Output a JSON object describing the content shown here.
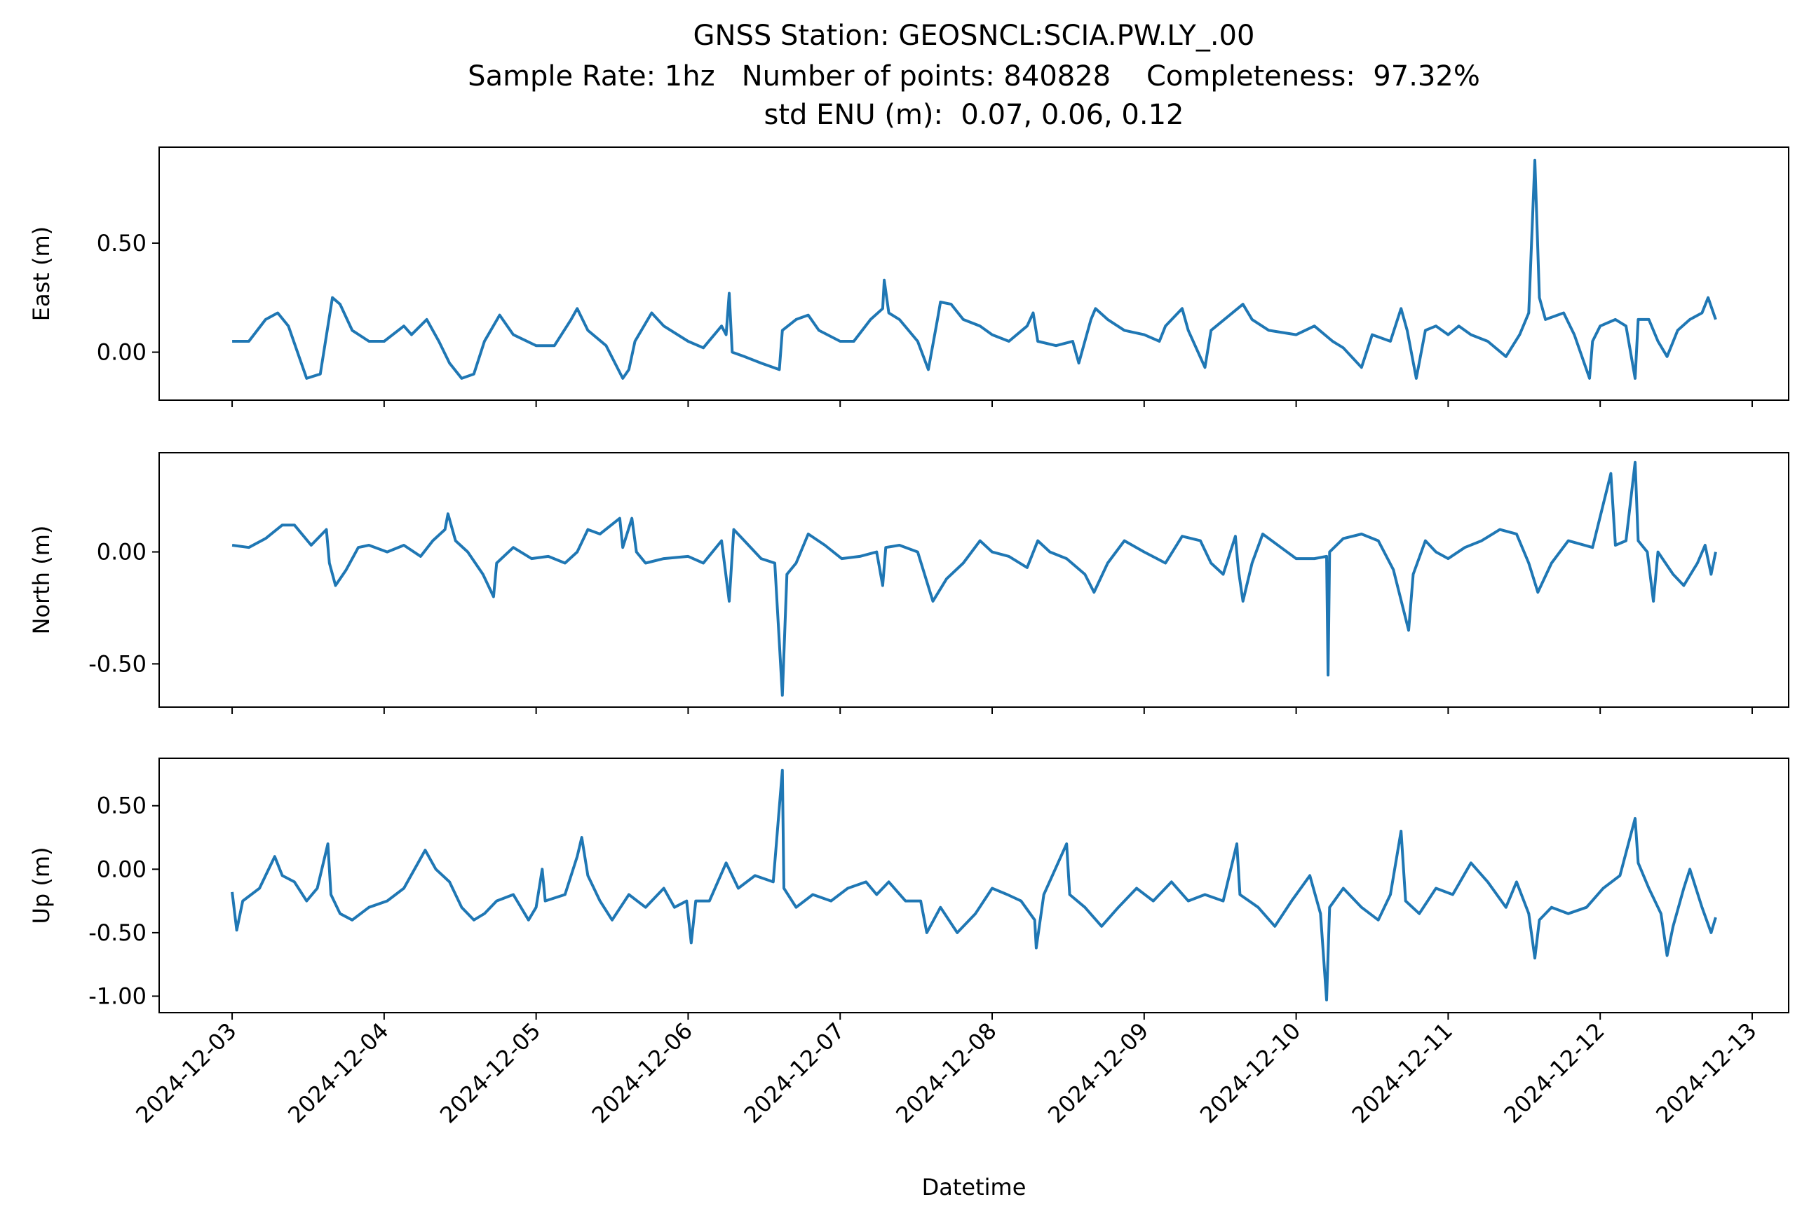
{
  "chart_data": [
    {
      "type": "line",
      "title": "GNSS Station: GEOSNCL:SCIA.PW.LY_.00",
      "subtitle": [
        "Sample Rate: 1hz   Number of points: 840828    Completeness:  97.32%",
        "std ENU (m):  0.07, 0.06, 0.12"
      ],
      "ylabel": "East (m)",
      "color": "#1f77b4",
      "xlim": [
        -0.48,
        10.24
      ],
      "xticks": [
        0,
        1,
        2,
        3,
        4,
        5,
        6,
        7,
        8,
        9,
        10
      ],
      "ylim": [
        -0.22,
        0.94
      ],
      "yticks": [
        {
          "value": 0,
          "label": "0.00"
        },
        {
          "value": 0.5,
          "label": "0.50"
        }
      ],
      "x": [
        0,
        0.11,
        0.22,
        0.3,
        0.37,
        0.49,
        0.58,
        0.66,
        0.71,
        0.79,
        0.9,
        1.0,
        1.13,
        1.18,
        1.28,
        1.36,
        1.43,
        1.51,
        1.59,
        1.66,
        1.76,
        1.85,
        2.0,
        2.12,
        2.23,
        2.27,
        2.34,
        2.46,
        2.57,
        2.61,
        2.65,
        2.76,
        2.84,
        3.0,
        3.1,
        3.22,
        3.25,
        3.27,
        3.29,
        3.37,
        3.48,
        3.6,
        3.62,
        3.71,
        3.79,
        3.86,
        4.0,
        4.09,
        4.2,
        4.28,
        4.29,
        4.32,
        4.39,
        4.51,
        4.58,
        4.64,
        4.66,
        4.73,
        4.81,
        4.92,
        5.0,
        5.11,
        5.23,
        5.27,
        5.3,
        5.42,
        5.53,
        5.57,
        5.65,
        5.68,
        5.76,
        5.87,
        6.0,
        6.1,
        6.14,
        6.25,
        6.29,
        6.4,
        6.44,
        6.65,
        6.71,
        6.82,
        7.0,
        7.12,
        7.24,
        7.31,
        7.43,
        7.5,
        7.62,
        7.69,
        7.73,
        7.79,
        7.85,
        7.92,
        8.0,
        8.07,
        8.15,
        8.26,
        8.38,
        8.47,
        8.53,
        8.57,
        8.6,
        8.64,
        8.76,
        8.83,
        8.93,
        8.95,
        9.0,
        9.1,
        9.17,
        9.23,
        9.25,
        9.32,
        9.38,
        9.44,
        9.51,
        9.59,
        9.67,
        9.71,
        9.76
      ],
      "values": [
        0.05,
        0.05,
        0.15,
        0.18,
        0.12,
        -0.12,
        -0.1,
        0.25,
        0.22,
        0.1,
        0.05,
        0.05,
        0.12,
        0.08,
        0.15,
        0.05,
        -0.05,
        -0.12,
        -0.1,
        0.05,
        0.17,
        0.08,
        0.03,
        0.03,
        0.15,
        0.2,
        0.1,
        0.03,
        -0.12,
        -0.08,
        0.05,
        0.18,
        0.12,
        0.05,
        0.02,
        0.12,
        0.08,
        0.27,
        0.0,
        -0.02,
        -0.05,
        -0.08,
        0.1,
        0.15,
        0.17,
        0.1,
        0.05,
        0.05,
        0.15,
        0.2,
        0.33,
        0.18,
        0.15,
        0.05,
        -0.08,
        0.15,
        0.23,
        0.22,
        0.15,
        0.12,
        0.08,
        0.05,
        0.12,
        0.18,
        0.05,
        0.03,
        0.05,
        -0.05,
        0.15,
        0.2,
        0.15,
        0.1,
        0.08,
        0.05,
        0.12,
        0.2,
        0.1,
        -0.07,
        0.1,
        0.22,
        0.15,
        0.1,
        0.08,
        0.12,
        0.05,
        0.02,
        -0.07,
        0.08,
        0.05,
        0.2,
        0.1,
        -0.12,
        0.1,
        0.12,
        0.08,
        0.12,
        0.08,
        0.05,
        -0.02,
        0.08,
        0.18,
        0.88,
        0.25,
        0.15,
        0.18,
        0.08,
        -0.12,
        0.05,
        0.12,
        0.15,
        0.12,
        -0.12,
        0.15,
        0.15,
        0.05,
        -0.02,
        0.1,
        0.15,
        0.18,
        0.25,
        0.15
      ]
    },
    {
      "type": "line",
      "ylabel": "North (m)",
      "color": "#1f77b4",
      "xlim": [
        -0.48,
        10.24
      ],
      "xticks": [
        0,
        1,
        2,
        3,
        4,
        5,
        6,
        7,
        8,
        9,
        10
      ],
      "ylim": [
        -0.693,
        0.443
      ],
      "yticks": [
        {
          "value": -0.5,
          "label": "-0.50"
        },
        {
          "value": 0,
          "label": "0.00"
        }
      ],
      "x": [
        0,
        0.11,
        0.22,
        0.33,
        0.41,
        0.52,
        0.62,
        0.64,
        0.68,
        0.75,
        0.83,
        0.9,
        1.02,
        1.13,
        1.24,
        1.32,
        1.4,
        1.42,
        1.47,
        1.55,
        1.65,
        1.72,
        1.74,
        1.85,
        1.97,
        2.08,
        2.19,
        2.27,
        2.34,
        2.42,
        2.55,
        2.57,
        2.63,
        2.66,
        2.72,
        2.84,
        3.0,
        3.1,
        3.22,
        3.27,
        3.3,
        3.37,
        3.48,
        3.57,
        3.62,
        3.65,
        3.71,
        3.79,
        3.9,
        4.01,
        4.13,
        4.24,
        4.28,
        4.3,
        4.39,
        4.51,
        4.61,
        4.7,
        4.81,
        4.92,
        5.0,
        5.11,
        5.23,
        5.3,
        5.38,
        5.49,
        5.61,
        5.67,
        5.76,
        5.87,
        6.0,
        6.14,
        6.25,
        6.37,
        6.44,
        6.52,
        6.6,
        6.62,
        6.65,
        6.71,
        6.78,
        6.9,
        7.0,
        7.12,
        7.2,
        7.21,
        7.22,
        7.31,
        7.43,
        7.54,
        7.64,
        7.74,
        7.77,
        7.85,
        7.92,
        8.0,
        8.11,
        8.22,
        8.34,
        8.45,
        8.53,
        8.59,
        8.68,
        8.79,
        8.95,
        9.07,
        9.1,
        9.17,
        9.23,
        9.25,
        9.31,
        9.35,
        9.38,
        9.48,
        9.55,
        9.64,
        9.69,
        9.73,
        9.76
      ],
      "values": [
        0.03,
        0.02,
        0.06,
        0.12,
        0.12,
        0.03,
        0.1,
        -0.05,
        -0.15,
        -0.08,
        0.02,
        0.03,
        0.0,
        0.03,
        -0.02,
        0.05,
        0.1,
        0.17,
        0.05,
        0.0,
        -0.1,
        -0.2,
        -0.05,
        0.02,
        -0.03,
        -0.02,
        -0.05,
        0.0,
        0.1,
        0.08,
        0.15,
        0.02,
        0.15,
        0.0,
        -0.05,
        -0.03,
        -0.02,
        -0.05,
        0.05,
        -0.22,
        0.1,
        0.05,
        -0.03,
        -0.05,
        -0.64,
        -0.1,
        -0.05,
        0.08,
        0.03,
        -0.03,
        -0.02,
        0.0,
        -0.15,
        0.02,
        0.03,
        0.0,
        -0.22,
        -0.12,
        -0.05,
        0.05,
        0.0,
        -0.02,
        -0.07,
        0.05,
        0.0,
        -0.03,
        -0.1,
        -0.18,
        -0.05,
        0.05,
        0.0,
        -0.05,
        0.07,
        0.05,
        -0.05,
        -0.1,
        0.07,
        -0.08,
        -0.22,
        -0.05,
        0.08,
        0.02,
        -0.03,
        -0.03,
        -0.02,
        -0.55,
        0.0,
        0.06,
        0.08,
        0.05,
        -0.08,
        -0.35,
        -0.1,
        0.05,
        0.0,
        -0.03,
        0.02,
        0.05,
        0.1,
        0.08,
        -0.05,
        -0.18,
        -0.05,
        0.05,
        0.02,
        0.35,
        0.03,
        0.05,
        0.4,
        0.05,
        0.0,
        -0.22,
        0.0,
        -0.1,
        -0.15,
        -0.05,
        0.03,
        -0.1,
        0.0
      ]
    },
    {
      "type": "line",
      "ylabel": "Up (m)",
      "xlabel": "Datetime",
      "color": "#1f77b4",
      "xlim": [
        -0.48,
        10.24
      ],
      "xticks": [
        {
          "value": 0,
          "label": "2024-12-03"
        },
        {
          "value": 1,
          "label": "2024-12-04"
        },
        {
          "value": 2,
          "label": "2024-12-05"
        },
        {
          "value": 3,
          "label": "2024-12-06"
        },
        {
          "value": 4,
          "label": "2024-12-07"
        },
        {
          "value": 5,
          "label": "2024-12-08"
        },
        {
          "value": 6,
          "label": "2024-12-09"
        },
        {
          "value": 7,
          "label": "2024-12-10"
        },
        {
          "value": 8,
          "label": "2024-12-11"
        },
        {
          "value": 9,
          "label": "2024-12-12"
        },
        {
          "value": 10,
          "label": "2024-12-13"
        }
      ],
      "ylim": [
        -1.13,
        0.874
      ],
      "yticks": [
        {
          "value": -1,
          "label": "-1.00"
        },
        {
          "value": -0.5,
          "label": "-0.50"
        },
        {
          "value": 0,
          "label": "0.00"
        },
        {
          "value": 0.5,
          "label": "0.50"
        }
      ],
      "x": [
        0,
        0.03,
        0.07,
        0.18,
        0.28,
        0.33,
        0.41,
        0.49,
        0.56,
        0.63,
        0.65,
        0.71,
        0.79,
        0.9,
        1.02,
        1.13,
        1.27,
        1.34,
        1.43,
        1.51,
        1.59,
        1.66,
        1.74,
        1.85,
        1.95,
        2.0,
        2.04,
        2.06,
        2.19,
        2.27,
        2.3,
        2.34,
        2.42,
        2.5,
        2.61,
        2.72,
        2.84,
        2.91,
        2.99,
        3.02,
        3.05,
        3.14,
        3.25,
        3.33,
        3.44,
        3.56,
        3.62,
        3.63,
        3.71,
        3.82,
        3.94,
        4.05,
        4.17,
        4.24,
        4.32,
        4.43,
        4.53,
        4.57,
        4.66,
        4.77,
        4.89,
        5.0,
        5.1,
        5.19,
        5.28,
        5.29,
        5.34,
        5.49,
        5.51,
        5.61,
        5.72,
        5.83,
        5.95,
        6.06,
        6.18,
        6.29,
        6.4,
        6.52,
        6.61,
        6.63,
        6.75,
        6.86,
        6.97,
        7.09,
        7.16,
        7.2,
        7.22,
        7.31,
        7.43,
        7.54,
        7.62,
        7.69,
        7.72,
        7.81,
        7.92,
        8.03,
        8.15,
        8.26,
        8.38,
        8.45,
        8.53,
        8.57,
        8.6,
        8.68,
        8.79,
        8.91,
        9.02,
        9.13,
        9.23,
        9.25,
        9.32,
        9.4,
        9.44,
        9.48,
        9.55,
        9.59,
        9.67,
        9.73,
        9.76
      ],
      "values": [
        -0.18,
        -0.48,
        -0.25,
        -0.15,
        0.1,
        -0.05,
        -0.1,
        -0.25,
        -0.15,
        0.2,
        -0.2,
        -0.35,
        -0.4,
        -0.3,
        -0.25,
        -0.15,
        0.15,
        0.0,
        -0.1,
        -0.3,
        -0.4,
        -0.35,
        -0.25,
        -0.2,
        -0.4,
        -0.3,
        0.0,
        -0.25,
        -0.2,
        0.1,
        0.25,
        -0.05,
        -0.25,
        -0.4,
        -0.2,
        -0.3,
        -0.15,
        -0.3,
        -0.25,
        -0.58,
        -0.25,
        -0.25,
        0.05,
        -0.15,
        -0.05,
        -0.1,
        0.78,
        -0.15,
        -0.3,
        -0.2,
        -0.25,
        -0.15,
        -0.1,
        -0.2,
        -0.1,
        -0.25,
        -0.25,
        -0.5,
        -0.3,
        -0.5,
        -0.35,
        -0.15,
        -0.2,
        -0.25,
        -0.4,
        -0.62,
        -0.2,
        0.2,
        -0.2,
        -0.3,
        -0.45,
        -0.3,
        -0.15,
        -0.25,
        -0.1,
        -0.25,
        -0.2,
        -0.25,
        0.2,
        -0.2,
        -0.3,
        -0.45,
        -0.25,
        -0.05,
        -0.35,
        -1.03,
        -0.3,
        -0.15,
        -0.3,
        -0.4,
        -0.2,
        0.3,
        -0.25,
        -0.35,
        -0.15,
        -0.2,
        0.05,
        -0.1,
        -0.3,
        -0.1,
        -0.35,
        -0.7,
        -0.4,
        -0.3,
        -0.35,
        -0.3,
        -0.15,
        -0.05,
        0.4,
        0.05,
        -0.15,
        -0.35,
        -0.68,
        -0.45,
        -0.15,
        0.0,
        -0.3,
        -0.5,
        -0.38
      ]
    }
  ]
}
